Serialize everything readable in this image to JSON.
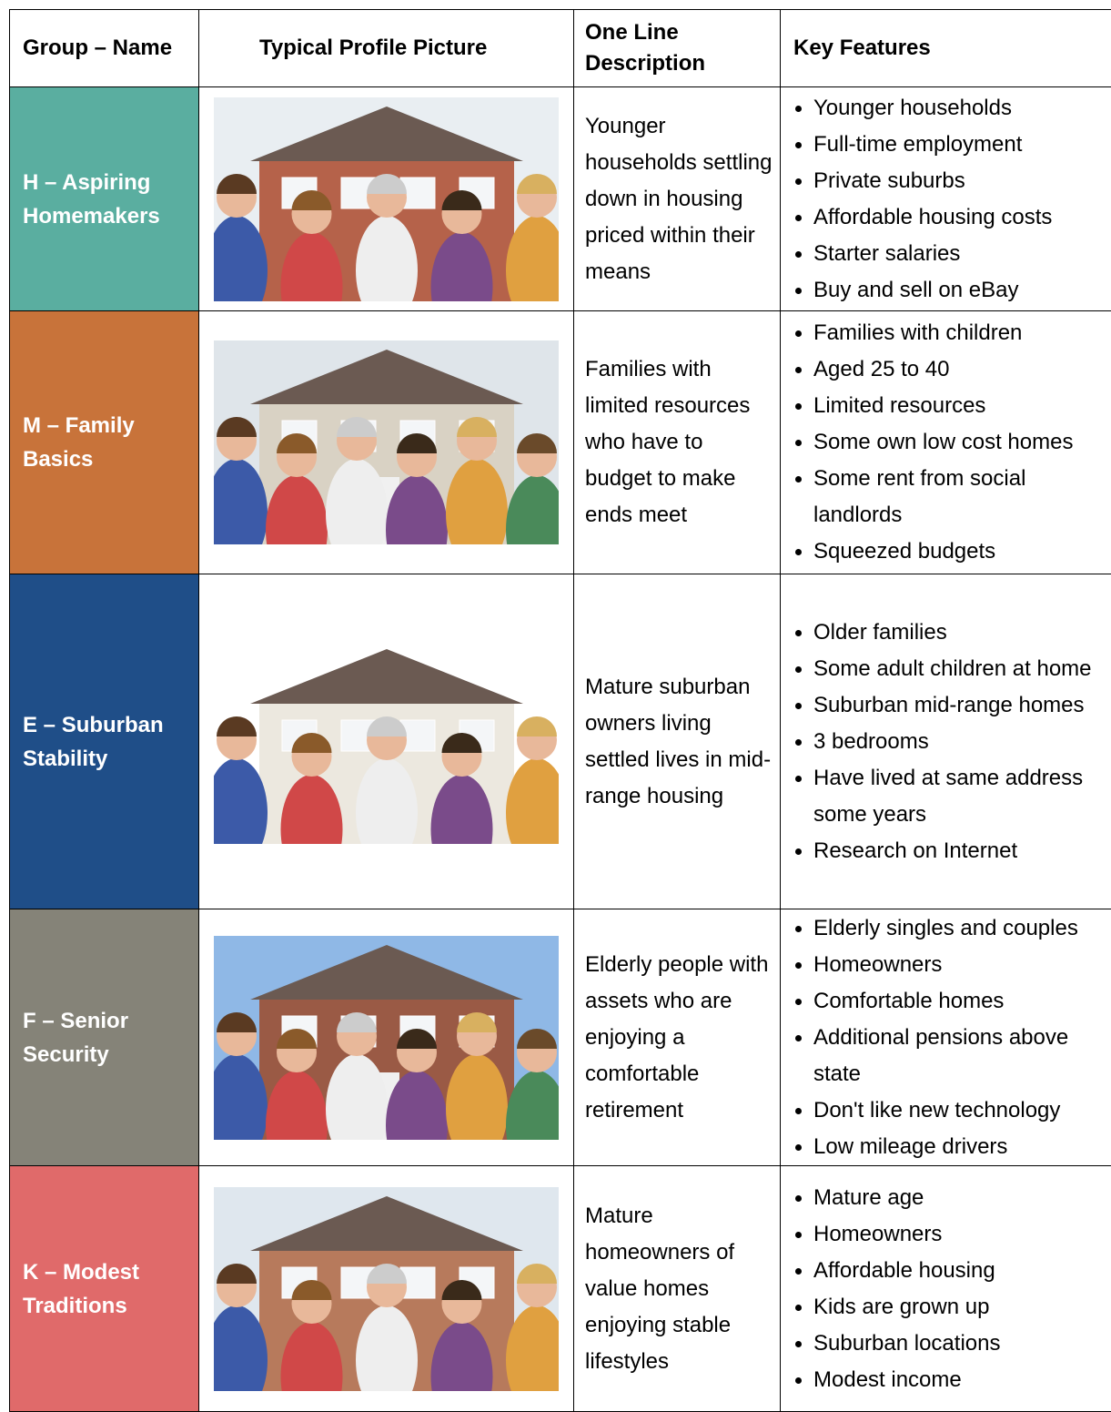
{
  "header": {
    "columns": [
      "Group – Name",
      "Typical Profile Picture",
      "One Line Description",
      "Key Features"
    ]
  },
  "rows": [
    {
      "group": "H – Aspiring Homemakers",
      "description": "Younger households settling down in housing priced within their means",
      "features": [
        "Younger households",
        "Full-time employment",
        "Private suburbs",
        "Affordable housing costs",
        "Starter salaries",
        "Buy and sell on eBay"
      ]
    },
    {
      "group": "M – Family Basics",
      "description": "Families with limited resources who have to budget to make ends meet",
      "features": [
        "Families with children",
        "Aged 25 to 40",
        "Limited resources",
        "Some own low cost homes",
        "Some rent from social landlords",
        "Squeezed budgets"
      ]
    },
    {
      "group": "E – Suburban Stability",
      "description": "Mature suburban owners living settled lives in mid-range housing",
      "features": [
        "Older families",
        "Some adult children at home",
        "Suburban mid-range homes",
        "3 bedrooms",
        "Have lived at same address some years",
        "Research on Internet"
      ]
    },
    {
      "group": "F – Senior Security",
      "description": "Elderly people with assets who are enjoying a comfortable retirement",
      "features": [
        "Elderly singles and couples",
        "Homeowners",
        "Comfortable homes",
        "Additional pensions above state",
        "Don't like new technology",
        "Low mileage drivers"
      ]
    },
    {
      "group": "K – Modest Traditions",
      "description": "Mature homeowners of value homes enjoying stable lifestyles",
      "features": [
        "Mature age",
        "Homeowners",
        "Affordable housing",
        "Kids are grown up",
        "Suburban locations",
        "Modest income"
      ]
    }
  ]
}
